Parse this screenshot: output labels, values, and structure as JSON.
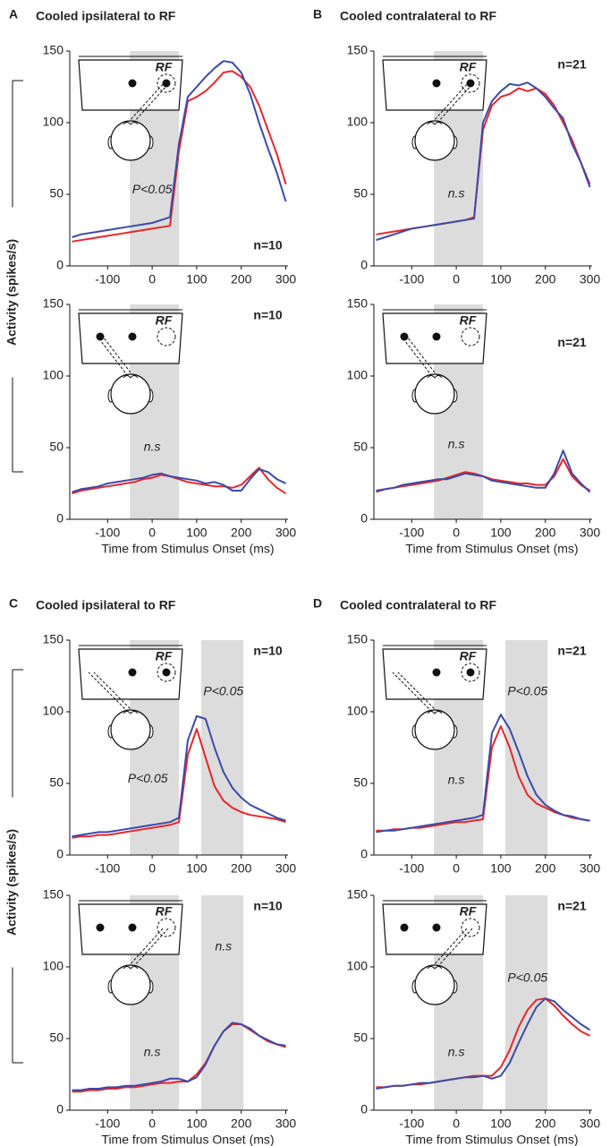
{
  "chart_data": [
    {
      "type": "line",
      "panel": "A",
      "title": "Cooled ipsilateral to RF",
      "ylabel": "Activity (spikes/s)",
      "inset_label": "RF",
      "annotations": [
        "P<0.05",
        "n=10"
      ],
      "x": [
        -180,
        -160,
        -140,
        -120,
        -100,
        -80,
        -60,
        -40,
        -20,
        0,
        20,
        40,
        60,
        80,
        100,
        120,
        140,
        160,
        180,
        200,
        220,
        240,
        260,
        280,
        300
      ],
      "xlim": [
        -185,
        305
      ],
      "ylim": [
        0,
        150
      ],
      "xticks": [
        -100,
        0,
        100,
        200,
        300
      ],
      "yticks": [
        0,
        50,
        100,
        150
      ],
      "shaded": [
        [
          -50,
          60
        ]
      ],
      "series": [
        {
          "color": "#e8262b",
          "values": [
            17,
            18,
            19,
            20,
            21,
            22,
            23,
            24,
            25,
            26,
            27,
            28,
            80,
            115,
            118,
            122,
            128,
            135,
            136,
            132,
            125,
            112,
            95,
            78,
            57
          ]
        },
        {
          "color": "#3b4aa8",
          "values": [
            20,
            22,
            23,
            24,
            25,
            26,
            27,
            28,
            29,
            30,
            32,
            34,
            85,
            118,
            125,
            132,
            138,
            143,
            142,
            135,
            120,
            100,
            82,
            65,
            45
          ]
        }
      ]
    },
    {
      "type": "line",
      "inset_label": "RF",
      "annotations": [
        "n=10",
        "n.s"
      ],
      "xlabel": "Time from Stimulus Onset (ms)",
      "x": [
        -180,
        -160,
        -140,
        -120,
        -100,
        -80,
        -60,
        -40,
        -20,
        0,
        20,
        40,
        60,
        80,
        100,
        120,
        140,
        160,
        180,
        200,
        220,
        240,
        260,
        280,
        300
      ],
      "xlim": [
        -185,
        305
      ],
      "ylim": [
        0,
        150
      ],
      "xticks": [
        -100,
        0,
        100,
        200,
        300
      ],
      "yticks": [
        0,
        50,
        100,
        150
      ],
      "shaded": [
        [
          -50,
          60
        ]
      ],
      "series": [
        {
          "color": "#e8262b",
          "values": [
            18,
            20,
            21,
            22,
            23,
            24,
            25,
            26,
            28,
            29,
            31,
            30,
            28,
            26,
            25,
            24,
            23,
            23,
            22,
            24,
            30,
            36,
            28,
            22,
            18
          ]
        },
        {
          "color": "#3b4aa8",
          "values": [
            19,
            21,
            22,
            23,
            25,
            26,
            27,
            28,
            29,
            31,
            32,
            30,
            29,
            28,
            27,
            25,
            26,
            24,
            20,
            20,
            28,
            35,
            33,
            28,
            25
          ]
        }
      ]
    },
    {
      "type": "line",
      "panel": "B",
      "title": "Cooled contralateral to RF",
      "inset_label": "RF",
      "annotations": [
        "n=21",
        "n.s"
      ],
      "x": [
        -180,
        -160,
        -140,
        -120,
        -100,
        -80,
        -60,
        -40,
        -20,
        0,
        20,
        40,
        60,
        80,
        100,
        120,
        140,
        160,
        180,
        200,
        220,
        240,
        260,
        280,
        300
      ],
      "xlim": [
        -185,
        305
      ],
      "ylim": [
        0,
        150
      ],
      "xticks": [
        -100,
        0,
        100,
        200,
        300
      ],
      "yticks": [
        0,
        50,
        100,
        150
      ],
      "shaded": [
        [
          -50,
          60
        ]
      ],
      "series": [
        {
          "color": "#e8262b",
          "values": [
            22,
            23,
            24,
            25,
            26,
            27,
            28,
            29,
            30,
            31,
            32,
            34,
            95,
            112,
            118,
            120,
            124,
            122,
            124,
            120,
            112,
            100,
            88,
            72,
            57
          ]
        },
        {
          "color": "#3b4aa8",
          "values": [
            18,
            20,
            22,
            24,
            26,
            27,
            28,
            29,
            30,
            31,
            32,
            33,
            100,
            115,
            122,
            127,
            126,
            128,
            124,
            118,
            110,
            103,
            85,
            72,
            55
          ]
        }
      ]
    },
    {
      "type": "line",
      "inset_label": "RF",
      "annotations": [
        "n=21",
        "n.s"
      ],
      "xlabel": "Time from Stimulus Onset (ms)",
      "x": [
        -180,
        -160,
        -140,
        -120,
        -100,
        -80,
        -60,
        -40,
        -20,
        0,
        20,
        40,
        60,
        80,
        100,
        120,
        140,
        160,
        180,
        200,
        220,
        240,
        260,
        280,
        300
      ],
      "xlim": [
        -185,
        305
      ],
      "ylim": [
        0,
        150
      ],
      "xticks": [
        -100,
        0,
        100,
        200,
        300
      ],
      "yticks": [
        0,
        50,
        100,
        150
      ],
      "shaded": [
        [
          -50,
          60
        ]
      ],
      "series": [
        {
          "color": "#e8262b",
          "values": [
            19,
            21,
            22,
            23,
            24,
            25,
            26,
            27,
            29,
            31,
            33,
            32,
            30,
            28,
            27,
            26,
            25,
            25,
            24,
            24,
            30,
            42,
            30,
            24,
            20
          ]
        },
        {
          "color": "#3b4aa8",
          "values": [
            20,
            21,
            22,
            24,
            25,
            26,
            27,
            28,
            28,
            30,
            32,
            31,
            30,
            27,
            26,
            25,
            24,
            23,
            22,
            22,
            32,
            48,
            32,
            25,
            19
          ]
        }
      ]
    },
    {
      "type": "line",
      "panel": "C",
      "title": "Cooled ipsilateral to RF",
      "ylabel": "Activity (spikes/s)",
      "inset_label": "RF",
      "annotations": [
        "n=10",
        "P<0.05",
        "P<0.05"
      ],
      "x": [
        -180,
        -160,
        -140,
        -120,
        -100,
        -80,
        -60,
        -40,
        -20,
        0,
        20,
        40,
        60,
        80,
        100,
        120,
        140,
        160,
        180,
        200,
        220,
        240,
        260,
        280,
        300
      ],
      "xlim": [
        -185,
        305
      ],
      "ylim": [
        0,
        150
      ],
      "xticks": [
        -100,
        0,
        100,
        200,
        300
      ],
      "yticks": [
        0,
        50,
        100,
        150
      ],
      "shaded": [
        [
          -50,
          60
        ],
        [
          110,
          205
        ]
      ],
      "series": [
        {
          "color": "#e8262b",
          "values": [
            12,
            13,
            13,
            14,
            14,
            15,
            16,
            17,
            18,
            19,
            20,
            21,
            23,
            70,
            88,
            68,
            48,
            38,
            33,
            30,
            28,
            27,
            26,
            25,
            23
          ]
        },
        {
          "color": "#3b4aa8",
          "values": [
            13,
            14,
            15,
            16,
            16,
            17,
            18,
            19,
            20,
            21,
            22,
            23,
            26,
            80,
            97,
            95,
            75,
            58,
            47,
            40,
            35,
            32,
            29,
            26,
            24
          ]
        }
      ]
    },
    {
      "type": "line",
      "inset_label": "RF",
      "annotations": [
        "n=10",
        "n.s",
        "n.s"
      ],
      "xlabel": "Time from Stimulus Onset (ms)",
      "x": [
        -180,
        -160,
        -140,
        -120,
        -100,
        -80,
        -60,
        -40,
        -20,
        0,
        20,
        40,
        60,
        80,
        100,
        120,
        140,
        160,
        180,
        200,
        220,
        240,
        260,
        280,
        300
      ],
      "xlim": [
        -185,
        305
      ],
      "ylim": [
        0,
        150
      ],
      "xticks": [
        -100,
        0,
        100,
        200,
        300
      ],
      "yticks": [
        0,
        50,
        100,
        150
      ],
      "shaded": [
        [
          -50,
          60
        ],
        [
          110,
          205
        ]
      ],
      "series": [
        {
          "color": "#e8262b",
          "values": [
            13,
            13,
            14,
            14,
            15,
            15,
            16,
            16,
            17,
            18,
            19,
            19,
            20,
            20,
            25,
            33,
            45,
            55,
            60,
            60,
            56,
            52,
            48,
            46,
            44
          ]
        },
        {
          "color": "#3b4aa8",
          "values": [
            14,
            14,
            15,
            15,
            16,
            16,
            17,
            17,
            18,
            19,
            20,
            22,
            22,
            20,
            23,
            32,
            45,
            55,
            61,
            60,
            57,
            52,
            49,
            46,
            45
          ]
        }
      ]
    },
    {
      "type": "line",
      "panel": "D",
      "title": "Cooled contralateral to RF",
      "inset_label": "RF",
      "annotations": [
        "n=21",
        "P<0.05",
        "n.s"
      ],
      "x": [
        -180,
        -160,
        -140,
        -120,
        -100,
        -80,
        -60,
        -40,
        -20,
        0,
        20,
        40,
        60,
        80,
        100,
        120,
        140,
        160,
        180,
        200,
        220,
        240,
        260,
        280,
        300
      ],
      "xlim": [
        -185,
        305
      ],
      "ylim": [
        0,
        150
      ],
      "xticks": [
        -100,
        0,
        100,
        200,
        300
      ],
      "yticks": [
        0,
        50,
        100,
        150
      ],
      "shaded": [
        [
          -50,
          60
        ],
        [
          110,
          205
        ]
      ],
      "series": [
        {
          "color": "#e8262b",
          "values": [
            17,
            17,
            18,
            18,
            19,
            19,
            20,
            21,
            22,
            23,
            23,
            24,
            25,
            75,
            90,
            75,
            55,
            42,
            36,
            33,
            30,
            28,
            26,
            25,
            24
          ]
        },
        {
          "color": "#3b4aa8",
          "values": [
            16,
            17,
            17,
            18,
            19,
            20,
            21,
            22,
            23,
            24,
            25,
            26,
            28,
            85,
            98,
            88,
            72,
            55,
            42,
            35,
            31,
            28,
            27,
            25,
            24
          ]
        }
      ]
    },
    {
      "type": "line",
      "inset_label": "RF",
      "annotations": [
        "n=21",
        "P<0.05",
        "n.s"
      ],
      "xlabel": "Time from Stimulus Onset (ms)",
      "x": [
        -180,
        -160,
        -140,
        -120,
        -100,
        -80,
        -60,
        -40,
        -20,
        0,
        20,
        40,
        60,
        80,
        100,
        120,
        140,
        160,
        180,
        200,
        220,
        240,
        260,
        280,
        300
      ],
      "xlim": [
        -185,
        305
      ],
      "ylim": [
        0,
        150
      ],
      "xticks": [
        -100,
        0,
        100,
        200,
        300
      ],
      "yticks": [
        0,
        50,
        100,
        150
      ],
      "shaded": [
        [
          -50,
          60
        ],
        [
          110,
          205
        ]
      ],
      "series": [
        {
          "color": "#e8262b",
          "values": [
            16,
            16,
            17,
            17,
            18,
            18,
            19,
            20,
            21,
            22,
            23,
            24,
            24,
            24,
            30,
            42,
            58,
            70,
            77,
            78,
            73,
            66,
            60,
            55,
            52
          ]
        },
        {
          "color": "#3b4aa8",
          "values": [
            15,
            16,
            17,
            17,
            18,
            19,
            19,
            20,
            21,
            22,
            23,
            23,
            24,
            22,
            24,
            33,
            47,
            60,
            72,
            78,
            76,
            70,
            65,
            60,
            56
          ]
        }
      ]
    }
  ]
}
